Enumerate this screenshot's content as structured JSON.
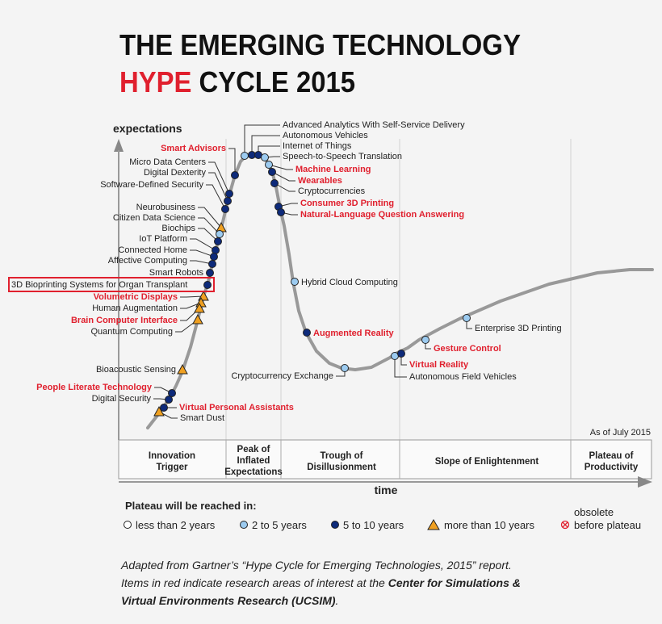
{
  "title": {
    "line1": "THE EMERGING TECHNOLOGY",
    "hype": "HYPE",
    "rest": "CYCLE 2015"
  },
  "y_axis_label": "expectations",
  "x_axis_label": "time",
  "as_of": "As of July 2015",
  "colors": {
    "red": "#e0202e",
    "light_blue": "#9ccbf0",
    "dark_blue": "#0d2a7a",
    "triangle": "#f0a020",
    "curve": "#999999"
  },
  "phases": [
    {
      "lines": [
        "Innovation",
        "Trigger"
      ]
    },
    {
      "lines": [
        "Peak of",
        "Inflated",
        "Expectations"
      ]
    },
    {
      "lines": [
        "Trough of",
        "Disillusionment"
      ]
    },
    {
      "lines": [
        "Slope of Enlightenment"
      ]
    },
    {
      "lines": [
        "Plateau of",
        "Productivity"
      ]
    }
  ],
  "items": [
    {
      "label": "Smart Advisors",
      "red": true,
      "cat": "5-10"
    },
    {
      "label": "Micro Data Centers",
      "red": false,
      "cat": "5-10"
    },
    {
      "label": "Digital Dexterity",
      "red": false,
      "cat": "5-10"
    },
    {
      "label": "Software-Defined Security",
      "red": false,
      "cat": "5-10"
    },
    {
      "label": "Neurobusiness",
      "red": false,
      "cat": "10+"
    },
    {
      "label": "Citizen Data Science",
      "red": false,
      "cat": "2-5"
    },
    {
      "label": "Biochips",
      "red": false,
      "cat": "5-10"
    },
    {
      "label": "IoT Platform",
      "red": false,
      "cat": "5-10"
    },
    {
      "label": "Connected Home",
      "red": false,
      "cat": "5-10"
    },
    {
      "label": "Affective Computing",
      "red": false,
      "cat": "5-10"
    },
    {
      "label": "Smart Robots",
      "red": false,
      "cat": "5-10"
    },
    {
      "label": "3D Bioprinting Systems for Organ Transplant",
      "red": false,
      "cat": "5-10",
      "boxed": true
    },
    {
      "label": "Volumetric Displays",
      "red": true,
      "cat": "10+"
    },
    {
      "label": "Human Augmentation",
      "red": false,
      "cat": "10+"
    },
    {
      "label": "Brain Computer Interface",
      "red": true,
      "cat": "10+"
    },
    {
      "label": "Quantum Computing",
      "red": false,
      "cat": "10+"
    },
    {
      "label": "Bioacoustic Sensing",
      "red": false,
      "cat": "10+"
    },
    {
      "label": "People Literate Technology",
      "red": true,
      "cat": "5-10"
    },
    {
      "label": "Digital Security",
      "red": false,
      "cat": "5-10"
    },
    {
      "label": "Virtual Personal Assistants",
      "red": true,
      "cat": "5-10"
    },
    {
      "label": "Smart Dust",
      "red": false,
      "cat": "10+"
    },
    {
      "label": "Advanced Analytics With Self-Service Delivery",
      "red": false,
      "cat": "2-5"
    },
    {
      "label": "Autonomous Vehicles",
      "red": false,
      "cat": "5-10"
    },
    {
      "label": "Internet of Things",
      "red": false,
      "cat": "5-10"
    },
    {
      "label": "Speech-to-Speech Translation",
      "red": false,
      "cat": "2-5"
    },
    {
      "label": "Machine Learning",
      "red": true,
      "cat": "2-5"
    },
    {
      "label": "Wearables",
      "red": true,
      "cat": "5-10"
    },
    {
      "label": "Cryptocurrencies",
      "red": false,
      "cat": "5-10"
    },
    {
      "label": "Consumer 3D Printing",
      "red": true,
      "cat": "5-10"
    },
    {
      "label": "Natural-Language Question Answering",
      "red": true,
      "cat": "5-10"
    },
    {
      "label": "Hybrid Cloud Computing",
      "red": false,
      "cat": "2-5"
    },
    {
      "label": "Augmented Reality",
      "red": true,
      "cat": "5-10"
    },
    {
      "label": "Cryptocurrency Exchange",
      "red": false,
      "cat": "2-5"
    },
    {
      "label": "Autonomous Field Vehicles",
      "red": false,
      "cat": "2-5"
    },
    {
      "label": "Virtual Reality",
      "red": true,
      "cat": "5-10"
    },
    {
      "label": "Gesture Control",
      "red": true,
      "cat": "2-5"
    },
    {
      "label": "Enterprise 3D Printing",
      "red": false,
      "cat": "2-5"
    }
  ],
  "legend": {
    "title": "Plateau will be reached in:",
    "entries": [
      {
        "label": "less than 2 years",
        "icon": "white-circle"
      },
      {
        "label": "2 to 5 years",
        "icon": "light-blue-circle"
      },
      {
        "label": "5 to 10 years",
        "icon": "dark-blue-circle"
      },
      {
        "label": "more than 10 years",
        "icon": "orange-triangle"
      },
      {
        "label_lines": [
          "obsolete",
          "before plateau"
        ],
        "icon": "red-x-circle"
      }
    ]
  },
  "caption": {
    "line1": "Adapted from Gartner’s “Hype Cycle for Emerging Technologies, 2015” report.",
    "line2a": "Items in red indicate research areas of interest at the ",
    "line2b": "Center for Simulations &",
    "line3a": "Virtual Environments Research (UCSIM)",
    "line3b": "."
  }
}
